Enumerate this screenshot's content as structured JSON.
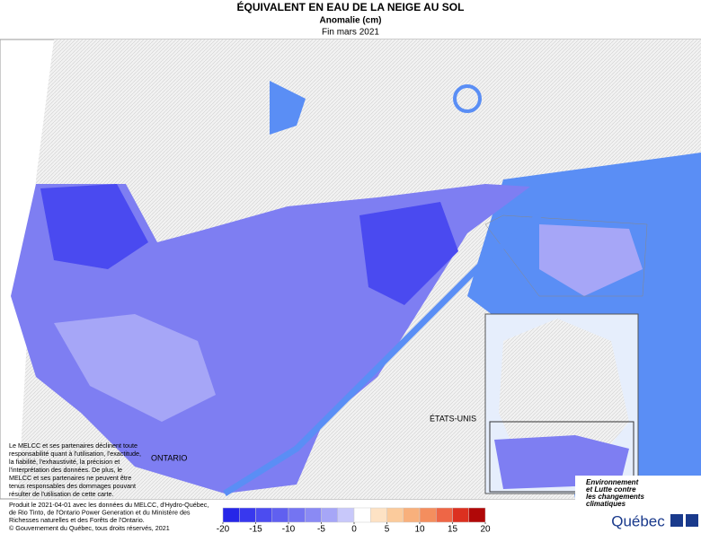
{
  "header": {
    "title": "ÉQUIVALENT EN EAU DE LA NEIGE AU SOL",
    "subtitle": "Anomalie (cm)",
    "period": "Fin mars 2021"
  },
  "map": {
    "labels": [
      "ONTARIO",
      "ÉTATS-UNIS"
    ]
  },
  "disclaimer": [
    "Le MELCC et ses partenaires déclinent toute",
    "responsabilité quant à l'utilisation, l'exactitude,",
    "la fiabilité, l'exhaustivité, la précision et",
    "l'interprétation des données. De plus, le",
    "MELCC et ses partenaires ne peuvent être",
    "tenus responsables des dommages pouvant",
    "résulter de l'utilisation de cette carte."
  ],
  "credits": [
    "Produit le 2021-04-01 avec les données du MELCC, d'Hydro-Québec,",
    "de Rio Tinto, de l'Ontario Power Generation et du Ministère des",
    "Richesses naturelles et des Forêts de l'Ontario."
  ],
  "copyright": "© Gouvernement du Québec, tous droits réservés, 2021",
  "legend": {
    "colors": [
      "#2626e8",
      "#3838ee",
      "#4c4cf0",
      "#6060f0",
      "#7474f2",
      "#8a8af4",
      "#a6a6f7",
      "#c8c8fa",
      "#ffffff",
      "#fde2c4",
      "#fbcb9c",
      "#f8b07c",
      "#f48e5e",
      "#ee6646",
      "#dc3020",
      "#b00808"
    ],
    "ticks": [
      -20,
      -15,
      -10,
      -5,
      0,
      5,
      10,
      15,
      20
    ]
  },
  "logo": {
    "lines": [
      "Environnement",
      "et Lutte contre",
      "les changements",
      "climatiques"
    ],
    "brand": "Québec"
  }
}
